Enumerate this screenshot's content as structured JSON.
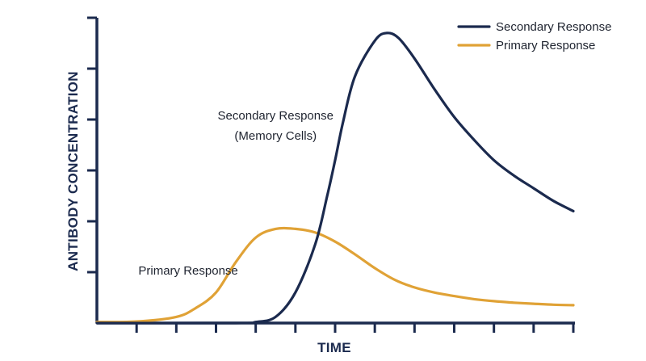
{
  "chart_data": {
    "type": "line",
    "title": "",
    "xlabel": "TIME",
    "ylabel": "ANTIBODY CONCENTRATION",
    "xlim": [
      0,
      12
    ],
    "ylim": [
      0,
      6
    ],
    "x_ticks": [
      1,
      2,
      3,
      4,
      5,
      6,
      7,
      8,
      9,
      10,
      11,
      12
    ],
    "y_ticks": [
      1,
      2,
      3,
      4,
      5,
      6
    ],
    "grid": false,
    "legend_position": "top-right",
    "series": [
      {
        "name": "Secondary Response",
        "color": "#1b2a4e",
        "x": [
          0,
          3.5,
          4.0,
          4.5,
          5.0,
          5.5,
          5.8,
          6.0,
          6.2,
          6.5,
          7.0,
          7.3,
          7.6,
          8.0,
          8.5,
          9.0,
          9.5,
          10.0,
          10.5,
          11.0,
          11.5,
          12.0
        ],
        "y": [
          0,
          0,
          0.02,
          0.12,
          0.6,
          1.55,
          2.5,
          3.2,
          3.95,
          4.85,
          5.55,
          5.7,
          5.6,
          5.2,
          4.6,
          4.05,
          3.6,
          3.2,
          2.9,
          2.65,
          2.4,
          2.2
        ]
      },
      {
        "name": "Primary Response",
        "color": "#e0a236",
        "x": [
          0,
          1.0,
          2.0,
          2.5,
          3.0,
          3.5,
          4.0,
          4.5,
          5.0,
          5.5,
          6.0,
          6.5,
          7.0,
          7.5,
          8.0,
          8.5,
          9.0,
          9.5,
          10.0,
          10.5,
          11.0,
          11.5,
          12.0
        ],
        "y": [
          0.02,
          0.03,
          0.12,
          0.3,
          0.6,
          1.2,
          1.68,
          1.85,
          1.85,
          1.78,
          1.6,
          1.35,
          1.08,
          0.85,
          0.7,
          0.6,
          0.53,
          0.47,
          0.43,
          0.4,
          0.38,
          0.36,
          0.35
        ]
      }
    ],
    "annotations": [
      {
        "text": "Secondary Response",
        "x": 4.5,
        "y": 4.0
      },
      {
        "text": "(Memory Cells)",
        "x": 4.5,
        "y": 3.6
      },
      {
        "text": "Primary Response",
        "x": 2.3,
        "y": 0.95
      }
    ],
    "legend": [
      {
        "label": "Secondary Response",
        "color": "#1b2a4e"
      },
      {
        "label": "Primary Response",
        "color": "#e0a236"
      }
    ]
  }
}
